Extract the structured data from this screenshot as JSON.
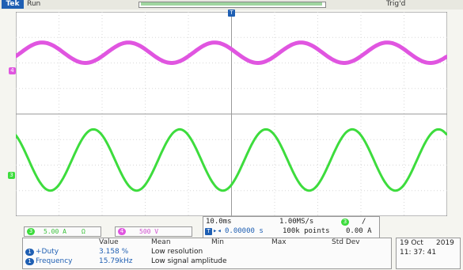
{
  "header": {
    "logo": "Tek",
    "run_status": "Run",
    "trigger_status": "Trig'd"
  },
  "channels": {
    "ch3": {
      "number": "3",
      "scale": "5.00 A",
      "coupling_symbol": "Ω",
      "color": "#3ddc3d"
    },
    "ch4": {
      "number": "4",
      "scale": "500 V",
      "color": "#e055e0"
    },
    "trigger_marker": "T"
  },
  "timebase": {
    "horizontal_scale": "10.0ms",
    "sample_rate": "1.00MS/s",
    "delay": "0.00000 s",
    "record_length": "100k points",
    "trigger_channel": "3",
    "trigger_slope": "/",
    "trigger_level": "0.00 A"
  },
  "measurements": {
    "headers": [
      "Value",
      "Mean",
      "Min",
      "Max",
      "Std Dev"
    ],
    "rows": [
      {
        "channel": "1",
        "name": "+Duty",
        "value": "3.158 %",
        "mean": "Low resolution"
      },
      {
        "channel": "1",
        "name": "Frequency",
        "value": "15.79kHz",
        "mean": "Low signal amplitude"
      }
    ]
  },
  "datetime": {
    "date": "19 Oct",
    "year": "2019",
    "time": "11: 37: 41"
  },
  "waveforms": {
    "ch4": {
      "color": "#e055e0",
      "cycles": 5,
      "amplitude_divisions": 0.4,
      "center_divisions": 2.4
    },
    "ch3": {
      "color": "#3ddc3d",
      "cycles": 5,
      "amplitude_divisions": 1.2,
      "center_divisions": -1.8
    }
  }
}
